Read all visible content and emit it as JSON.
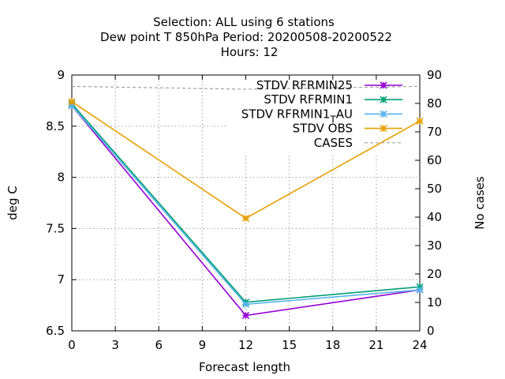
{
  "chart_data": {
    "type": "line",
    "title_lines": [
      "Selection: ALL using     6 stations",
      "Dew point T 850hPa   Period: 20200508-20200522",
      "Hours:  12"
    ],
    "xlabel": "Forecast length",
    "ylabel": "deg C",
    "y2label": "No cases",
    "xlim": [
      0,
      24
    ],
    "ylim": [
      6.5,
      9
    ],
    "y2lim": [
      0,
      90
    ],
    "x_ticks": [
      "0",
      "3",
      "6",
      "9",
      "12",
      "15",
      "18",
      "21",
      "24"
    ],
    "y_ticks": [
      "6.5",
      "7",
      "7.5",
      "8",
      "8.5",
      "9"
    ],
    "y2_ticks": [
      "0",
      "10",
      "20",
      "30",
      "40",
      "50",
      "60",
      "70",
      "80",
      "90"
    ],
    "grid": true,
    "legend_position": "top-right",
    "series": [
      {
        "name": "STDV RFRMIN25",
        "axis": "y",
        "color": "#9400d3",
        "marker": "x",
        "x": [
          0,
          12,
          24
        ],
        "y": [
          8.7,
          6.65,
          6.9
        ]
      },
      {
        "name": "STDV RFRMIN1",
        "axis": "y",
        "color": "#009e73",
        "marker": "x",
        "x": [
          0,
          12,
          24
        ],
        "y": [
          8.72,
          6.78,
          6.93
        ]
      },
      {
        "name": "STDV RFRMIN1_TAU",
        "legend_main": "STDV RFRMIN1",
        "legend_sub": "T",
        "legend_tail": "AU",
        "axis": "y",
        "color": "#56b4e9",
        "marker": "x",
        "x": [
          0,
          12,
          24
        ],
        "y": [
          8.7,
          6.76,
          6.9
        ]
      },
      {
        "name": "STDV OBS",
        "axis": "y",
        "color": "#e69f00",
        "marker": "x",
        "x": [
          0,
          12,
          24
        ],
        "y": [
          8.74,
          7.6,
          8.55
        ]
      },
      {
        "name": "CASES",
        "axis": "y2",
        "color": "#a0a0a0",
        "dashed": true,
        "x": [
          0,
          12,
          24
        ],
        "y": [
          86,
          85,
          86
        ]
      }
    ]
  }
}
